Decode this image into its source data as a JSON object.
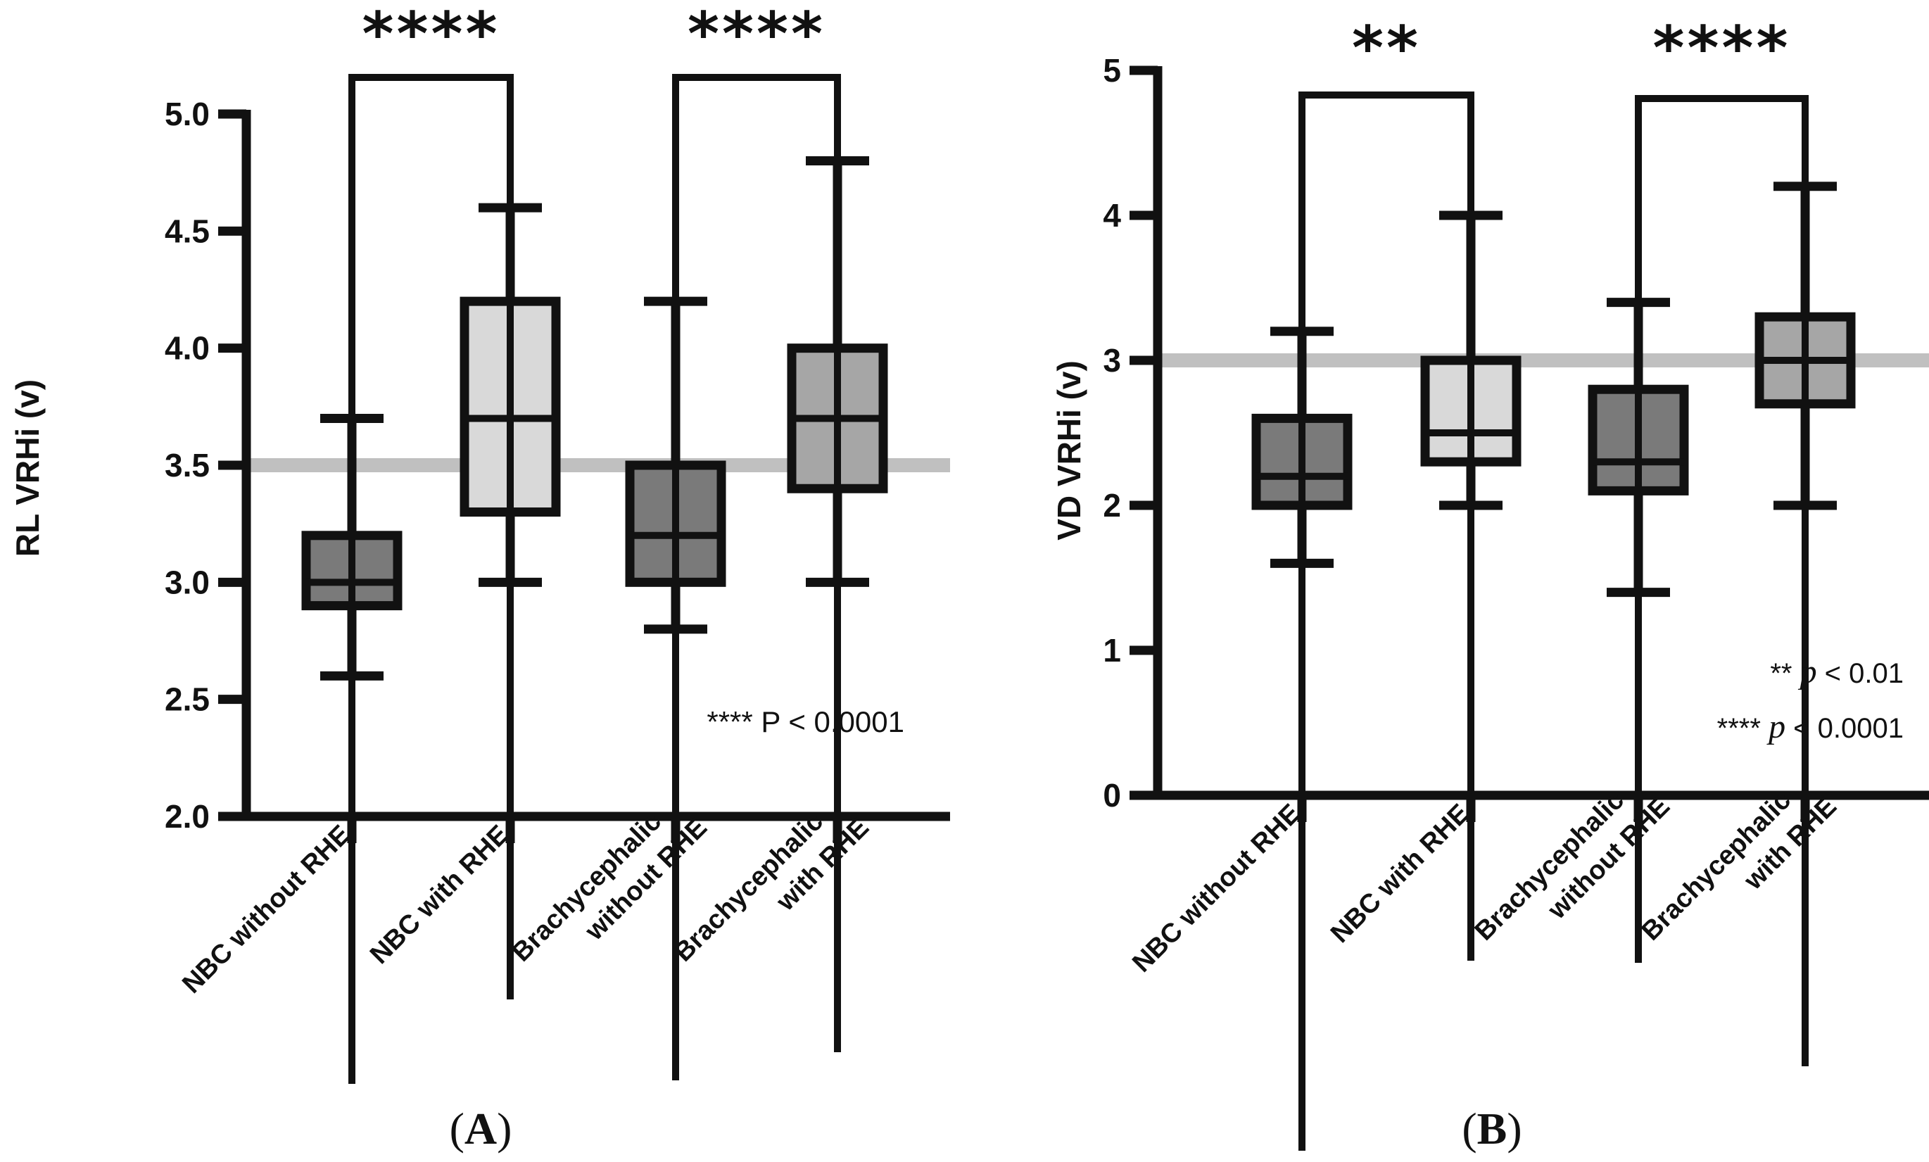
{
  "chart_data": [
    {
      "type": "box",
      "panel_label": "A",
      "ylabel": "RL VRHi (v)",
      "ylim": [
        2.0,
        5.0
      ],
      "yticks": [
        "2.0",
        "2.5",
        "3.0",
        "3.5",
        "4.0",
        "4.5",
        "5.0"
      ],
      "categories": [
        "NBC without RHE",
        "NBC with RHE",
        "Brachycephalic without RHE",
        "Brachycephalic with RHE"
      ],
      "category_lines": [
        [
          "NBC without RHE"
        ],
        [
          "NBC with RHE"
        ],
        [
          "Brachycephalic",
          "without RHE"
        ],
        [
          "Brachycephalic",
          "with RHE"
        ]
      ],
      "boxes": [
        {
          "category": "NBC without RHE",
          "min": 2.6,
          "q1": 2.9,
          "median": 3.0,
          "q3": 3.2,
          "max": 3.7,
          "fill": "#7a7a7a"
        },
        {
          "category": "NBC with RHE",
          "min": 3.0,
          "q1": 3.3,
          "median": 3.7,
          "q3": 4.2,
          "max": 4.6,
          "fill": "#d9d9d9"
        },
        {
          "category": "Brachycephalic without RHE",
          "min": 2.8,
          "q1": 3.0,
          "median": 3.2,
          "q3": 3.5,
          "max": 4.2,
          "fill": "#7a7a7a"
        },
        {
          "category": "Brachycephalic with RHE",
          "min": 3.0,
          "q1": 3.4,
          "median": 3.7,
          "q3": 4.0,
          "max": 4.8,
          "fill": "#a6a6a6"
        }
      ],
      "reference_line": 3.5,
      "significance": [
        {
          "from": 0,
          "to": 1,
          "label": "****"
        },
        {
          "from": 2,
          "to": 3,
          "label": "****"
        }
      ],
      "legend_notes": [
        {
          "stars": "****",
          "italic_p": "",
          "text": "P < 0.0001"
        }
      ]
    },
    {
      "type": "box",
      "panel_label": "B",
      "ylabel": "VD VRHi (v)",
      "ylim": [
        0,
        5
      ],
      "yticks": [
        "0",
        "1",
        "2",
        "3",
        "4",
        "5"
      ],
      "categories": [
        "NBC without RHE",
        "NBC with RHE",
        "Brachycephalic without RHE",
        "Brachycephalic with RHE"
      ],
      "category_lines": [
        [
          "NBC without RHE"
        ],
        [
          "NBC with RHE"
        ],
        [
          "Brachycephalic",
          "without RHE"
        ],
        [
          "Brachycephalic",
          "with RHE"
        ]
      ],
      "boxes": [
        {
          "category": "NBC without RHE",
          "min": 1.6,
          "q1": 2.0,
          "median": 2.2,
          "q3": 2.6,
          "max": 3.2,
          "fill": "#7a7a7a"
        },
        {
          "category": "NBC with RHE",
          "min": 2.0,
          "q1": 2.3,
          "median": 2.5,
          "q3": 3.0,
          "max": 4.0,
          "fill": "#d9d9d9"
        },
        {
          "category": "Brachycephalic without RHE",
          "min": 1.4,
          "q1": 2.1,
          "median": 2.3,
          "q3": 2.8,
          "max": 3.4,
          "fill": "#7a7a7a"
        },
        {
          "category": "Brachycephalic with RHE",
          "min": 2.0,
          "q1": 2.7,
          "median": 3.0,
          "q3": 3.3,
          "max": 4.2,
          "fill": "#a6a6a6"
        }
      ],
      "reference_line": 3.0,
      "significance": [
        {
          "from": 0,
          "to": 1,
          "label": "**"
        },
        {
          "from": 2,
          "to": 3,
          "label": "****"
        }
      ],
      "legend_notes": [
        {
          "stars": "**",
          "italic_p": "p",
          "text": "< 0.01"
        },
        {
          "stars": "****",
          "italic_p": "p",
          "text": "< 0.0001"
        }
      ]
    }
  ],
  "colors": {
    "ink": "#111111",
    "reference_line": "#c0c0c0"
  }
}
